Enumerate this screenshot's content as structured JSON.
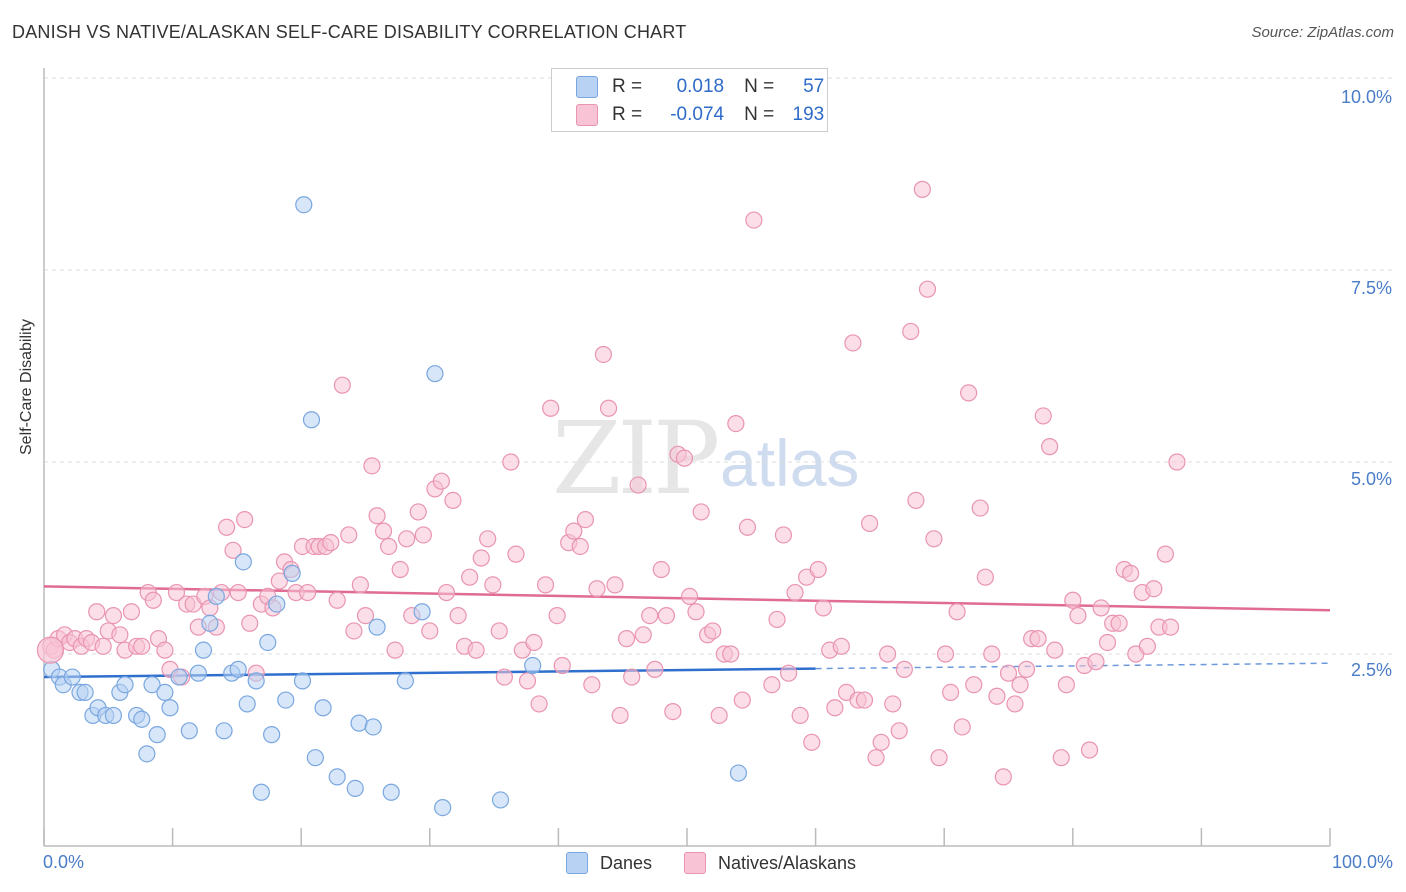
{
  "title": "DANISH VS NATIVE/ALASKAN SELF-CARE DISABILITY CORRELATION CHART",
  "source": "Source: ZipAtlas.com",
  "watermark": {
    "zip": "ZIP",
    "atlas": "atlas"
  },
  "legend": {
    "rows": [
      {
        "r_label": "R =",
        "r_value": "0.018",
        "n_label": "N =",
        "n_value": "57"
      },
      {
        "r_label": "R =",
        "r_value": "-0.074",
        "n_label": "N =",
        "n_value": "193"
      }
    ]
  },
  "bottom_legend": [
    "Danes",
    "Natives/Alaskans"
  ],
  "colors": {
    "danes_fill": "#b7d2f3",
    "danes_stroke": "#7aa7df",
    "danes_line": "#2f6fce",
    "natives_fill": "#f8c3d4",
    "natives_stroke": "#e994b2",
    "natives_line": "#e06b95",
    "axis_text": "#4a7cc7",
    "grid": "#dddddd"
  },
  "chart_data": {
    "type": "scatter",
    "title": "DANISH VS NATIVE/ALASKAN SELF-CARE DISABILITY CORRELATION CHART",
    "xlabel": "",
    "ylabel": "Self-Care Disability",
    "xlim": [
      0,
      100
    ],
    "ylim": [
      0,
      10
    ],
    "x_tick_labels": [
      "0.0%",
      "100.0%"
    ],
    "y_ticks": [
      2.5,
      5.0,
      7.5,
      10.0
    ],
    "y_tick_labels": [
      "2.5%",
      "5.0%",
      "7.5%",
      "10.0%"
    ],
    "grid": "horizontal dashed",
    "legend_position": "top-center",
    "series": [
      {
        "name": "Danes",
        "trend": {
          "x": [
            0,
            60
          ],
          "y": [
            2.2,
            2.31
          ],
          "dashed_extension_to": [
            100,
            2.38
          ]
        },
        "points": [
          [
            0.6,
            2.3
          ],
          [
            1.2,
            2.2
          ],
          [
            1.5,
            2.1
          ],
          [
            2.2,
            2.2
          ],
          [
            2.8,
            2.0
          ],
          [
            3.2,
            2.0
          ],
          [
            3.8,
            1.7
          ],
          [
            4.2,
            1.8
          ],
          [
            4.8,
            1.7
          ],
          [
            5.4,
            1.7
          ],
          [
            5.9,
            2.0
          ],
          [
            6.3,
            2.1
          ],
          [
            7.2,
            1.7
          ],
          [
            7.6,
            1.65
          ],
          [
            8.0,
            1.2
          ],
          [
            8.4,
            2.1
          ],
          [
            8.8,
            1.45
          ],
          [
            9.4,
            2.0
          ],
          [
            9.8,
            1.8
          ],
          [
            10.5,
            2.2
          ],
          [
            11.3,
            1.5
          ],
          [
            12.0,
            2.25
          ],
          [
            12.4,
            2.55
          ],
          [
            12.9,
            2.9
          ],
          [
            13.4,
            3.25
          ],
          [
            14.0,
            1.5
          ],
          [
            14.6,
            2.25
          ],
          [
            15.1,
            2.3
          ],
          [
            15.5,
            3.7
          ],
          [
            15.8,
            1.85
          ],
          [
            16.5,
            2.15
          ],
          [
            16.9,
            0.7
          ],
          [
            17.4,
            2.65
          ],
          [
            17.7,
            1.45
          ],
          [
            18.1,
            3.15
          ],
          [
            18.8,
            1.9
          ],
          [
            19.3,
            3.55
          ],
          [
            20.1,
            2.15
          ],
          [
            20.2,
            8.35
          ],
          [
            20.8,
            5.55
          ],
          [
            21.1,
            1.15
          ],
          [
            21.7,
            1.8
          ],
          [
            22.8,
            0.9
          ],
          [
            24.2,
            0.75
          ],
          [
            24.5,
            1.6
          ],
          [
            25.6,
            1.55
          ],
          [
            25.9,
            2.85
          ],
          [
            27.0,
            0.7
          ],
          [
            28.1,
            2.15
          ],
          [
            29.4,
            3.05
          ],
          [
            30.4,
            6.15
          ],
          [
            31.0,
            0.5
          ],
          [
            35.5,
            0.6
          ],
          [
            38.0,
            2.35
          ],
          [
            54.0,
            0.95
          ]
        ]
      },
      {
        "name": "Natives/Alaskans",
        "trend": {
          "x": [
            0,
            100
          ],
          "y": [
            3.38,
            3.07
          ]
        },
        "points": [
          [
            0.5,
            2.6
          ],
          [
            0.8,
            2.55
          ],
          [
            1.1,
            2.7
          ],
          [
            1.6,
            2.75
          ],
          [
            2.0,
            2.65
          ],
          [
            2.4,
            2.7
          ],
          [
            2.9,
            2.6
          ],
          [
            3.3,
            2.7
          ],
          [
            3.7,
            2.65
          ],
          [
            4.1,
            3.05
          ],
          [
            4.6,
            2.6
          ],
          [
            5.0,
            2.8
          ],
          [
            5.4,
            3.0
          ],
          [
            5.9,
            2.75
          ],
          [
            6.3,
            2.55
          ],
          [
            6.8,
            3.05
          ],
          [
            7.2,
            2.6
          ],
          [
            7.6,
            2.6
          ],
          [
            8.1,
            3.3
          ],
          [
            8.5,
            3.2
          ],
          [
            8.9,
            2.7
          ],
          [
            9.4,
            2.55
          ],
          [
            9.8,
            2.3
          ],
          [
            10.3,
            3.3
          ],
          [
            10.7,
            2.2
          ],
          [
            11.1,
            3.15
          ],
          [
            11.6,
            3.15
          ],
          [
            12.0,
            2.85
          ],
          [
            12.5,
            3.25
          ],
          [
            12.9,
            3.1
          ],
          [
            13.4,
            2.85
          ],
          [
            13.8,
            3.3
          ],
          [
            14.2,
            4.15
          ],
          [
            14.7,
            3.85
          ],
          [
            15.1,
            3.3
          ],
          [
            15.6,
            4.25
          ],
          [
            16.0,
            2.9
          ],
          [
            16.5,
            2.25
          ],
          [
            16.9,
            3.15
          ],
          [
            17.4,
            3.25
          ],
          [
            17.8,
            3.1
          ],
          [
            18.3,
            3.45
          ],
          [
            18.7,
            3.7
          ],
          [
            19.2,
            3.6
          ],
          [
            19.6,
            3.3
          ],
          [
            20.1,
            3.9
          ],
          [
            20.5,
            3.3
          ],
          [
            21.0,
            3.9
          ],
          [
            21.4,
            3.9
          ],
          [
            21.9,
            3.9
          ],
          [
            22.3,
            3.95
          ],
          [
            22.8,
            3.2
          ],
          [
            23.2,
            6.0
          ],
          [
            23.7,
            4.05
          ],
          [
            24.1,
            2.8
          ],
          [
            24.6,
            3.4
          ],
          [
            25.0,
            3.0
          ],
          [
            25.5,
            4.95
          ],
          [
            25.9,
            4.3
          ],
          [
            26.4,
            4.1
          ],
          [
            26.8,
            3.9
          ],
          [
            27.3,
            2.55
          ],
          [
            27.7,
            3.6
          ],
          [
            28.2,
            4.0
          ],
          [
            28.6,
            3.0
          ],
          [
            29.1,
            4.35
          ],
          [
            29.5,
            4.05
          ],
          [
            30.0,
            2.8
          ],
          [
            30.4,
            4.65
          ],
          [
            30.9,
            4.75
          ],
          [
            31.3,
            3.3
          ],
          [
            31.8,
            4.5
          ],
          [
            32.2,
            3.0
          ],
          [
            32.7,
            2.6
          ],
          [
            33.1,
            3.5
          ],
          [
            33.6,
            2.55
          ],
          [
            34.0,
            3.75
          ],
          [
            34.5,
            4.0
          ],
          [
            34.9,
            3.4
          ],
          [
            35.4,
            2.8
          ],
          [
            35.8,
            2.2
          ],
          [
            36.3,
            5.0
          ],
          [
            36.7,
            3.8
          ],
          [
            37.2,
            2.55
          ],
          [
            37.6,
            2.15
          ],
          [
            38.1,
            2.65
          ],
          [
            38.5,
            1.85
          ],
          [
            39.0,
            3.4
          ],
          [
            39.4,
            5.7
          ],
          [
            39.9,
            3.0
          ],
          [
            40.3,
            2.35
          ],
          [
            40.8,
            3.95
          ],
          [
            41.2,
            4.1
          ],
          [
            41.7,
            3.9
          ],
          [
            42.1,
            4.25
          ],
          [
            42.6,
            2.1
          ],
          [
            43.0,
            3.35
          ],
          [
            43.5,
            6.4
          ],
          [
            43.9,
            5.7
          ],
          [
            44.4,
            3.4
          ],
          [
            44.8,
            1.7
          ],
          [
            45.3,
            2.7
          ],
          [
            45.7,
            2.2
          ],
          [
            46.2,
            4.7
          ],
          [
            46.6,
            2.75
          ],
          [
            47.1,
            3.0
          ],
          [
            47.5,
            2.3
          ],
          [
            48.0,
            3.6
          ],
          [
            48.4,
            3.0
          ],
          [
            48.9,
            1.75
          ],
          [
            49.3,
            5.1
          ],
          [
            49.8,
            5.05
          ],
          [
            50.2,
            3.25
          ],
          [
            50.7,
            3.05
          ],
          [
            51.1,
            4.35
          ],
          [
            51.6,
            2.75
          ],
          [
            52.0,
            2.8
          ],
          [
            52.5,
            1.7
          ],
          [
            52.9,
            2.5
          ],
          [
            53.4,
            2.5
          ],
          [
            53.8,
            5.5
          ],
          [
            54.3,
            1.9
          ],
          [
            54.7,
            4.15
          ],
          [
            55.2,
            8.15
          ],
          [
            56.6,
            2.1
          ],
          [
            57.0,
            2.95
          ],
          [
            57.5,
            4.05
          ],
          [
            57.9,
            2.25
          ],
          [
            58.4,
            3.3
          ],
          [
            58.8,
            1.7
          ],
          [
            59.3,
            3.5
          ],
          [
            59.7,
            1.35
          ],
          [
            60.2,
            3.6
          ],
          [
            60.6,
            3.1
          ],
          [
            61.1,
            2.55
          ],
          [
            61.5,
            1.8
          ],
          [
            62.0,
            2.6
          ],
          [
            62.4,
            2.0
          ],
          [
            62.9,
            6.55
          ],
          [
            63.3,
            1.9
          ],
          [
            63.8,
            1.9
          ],
          [
            64.2,
            4.2
          ],
          [
            64.7,
            1.15
          ],
          [
            65.1,
            1.35
          ],
          [
            65.6,
            2.5
          ],
          [
            66.0,
            1.85
          ],
          [
            66.5,
            1.5
          ],
          [
            66.9,
            2.3
          ],
          [
            67.4,
            6.7
          ],
          [
            67.8,
            4.5
          ],
          [
            68.3,
            8.55
          ],
          [
            68.7,
            7.25
          ],
          [
            69.2,
            4.0
          ],
          [
            69.6,
            1.15
          ],
          [
            70.1,
            2.5
          ],
          [
            70.5,
            2.0
          ],
          [
            71.0,
            3.05
          ],
          [
            71.4,
            1.55
          ],
          [
            71.9,
            5.9
          ],
          [
            72.3,
            2.1
          ],
          [
            72.8,
            4.4
          ],
          [
            73.2,
            3.5
          ],
          [
            73.7,
            2.5
          ],
          [
            74.1,
            1.95
          ],
          [
            74.6,
            0.9
          ],
          [
            75.0,
            2.25
          ],
          [
            75.5,
            1.85
          ],
          [
            75.9,
            2.1
          ],
          [
            76.4,
            2.3
          ],
          [
            76.8,
            2.7
          ],
          [
            77.3,
            2.7
          ],
          [
            77.7,
            5.6
          ],
          [
            78.2,
            5.2
          ],
          [
            78.6,
            2.55
          ],
          [
            79.1,
            1.15
          ],
          [
            79.5,
            2.1
          ],
          [
            80.0,
            3.2
          ],
          [
            80.4,
            3.0
          ],
          [
            80.9,
            2.35
          ],
          [
            81.3,
            1.25
          ],
          [
            81.8,
            2.4
          ],
          [
            82.2,
            3.1
          ],
          [
            82.7,
            2.65
          ],
          [
            83.1,
            2.9
          ],
          [
            83.6,
            2.9
          ],
          [
            84.0,
            3.6
          ],
          [
            84.5,
            3.55
          ],
          [
            84.9,
            2.5
          ],
          [
            85.4,
            3.3
          ],
          [
            85.8,
            2.6
          ],
          [
            86.3,
            3.35
          ],
          [
            86.7,
            2.85
          ],
          [
            87.2,
            3.8
          ],
          [
            87.6,
            2.85
          ],
          [
            88.1,
            5.0
          ]
        ]
      }
    ]
  }
}
